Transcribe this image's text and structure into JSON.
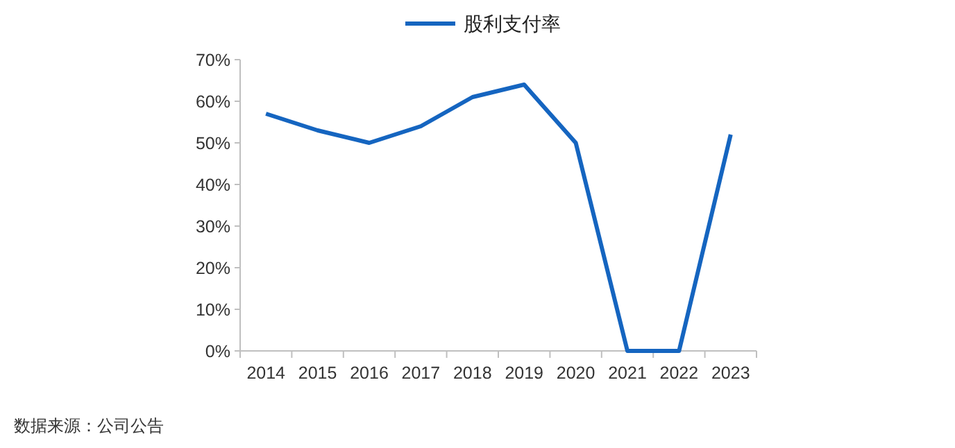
{
  "chart_data": {
    "type": "line",
    "categories": [
      "2014",
      "2015",
      "2016",
      "2017",
      "2018",
      "2019",
      "2020",
      "2021",
      "2022",
      "2023"
    ],
    "series": [
      {
        "name": "股利支付率",
        "color": "#1565c0",
        "values": [
          57,
          53,
          50,
          54,
          61,
          64,
          50,
          0,
          0,
          52
        ]
      }
    ],
    "ylim": [
      0,
      70
    ],
    "yticks": [
      {
        "value": 0,
        "label": "0%"
      },
      {
        "value": 10,
        "label": "10%"
      },
      {
        "value": 20,
        "label": "20%"
      },
      {
        "value": 30,
        "label": "30%"
      },
      {
        "value": 40,
        "label": "40%"
      },
      {
        "value": 50,
        "label": "50%"
      },
      {
        "value": 60,
        "label": "60%"
      },
      {
        "value": 70,
        "label": "70%"
      }
    ],
    "legend": "top",
    "grid": false,
    "marker": "none",
    "line_style": "solid",
    "annotations": [
      "数据来源：公司公告"
    ]
  }
}
